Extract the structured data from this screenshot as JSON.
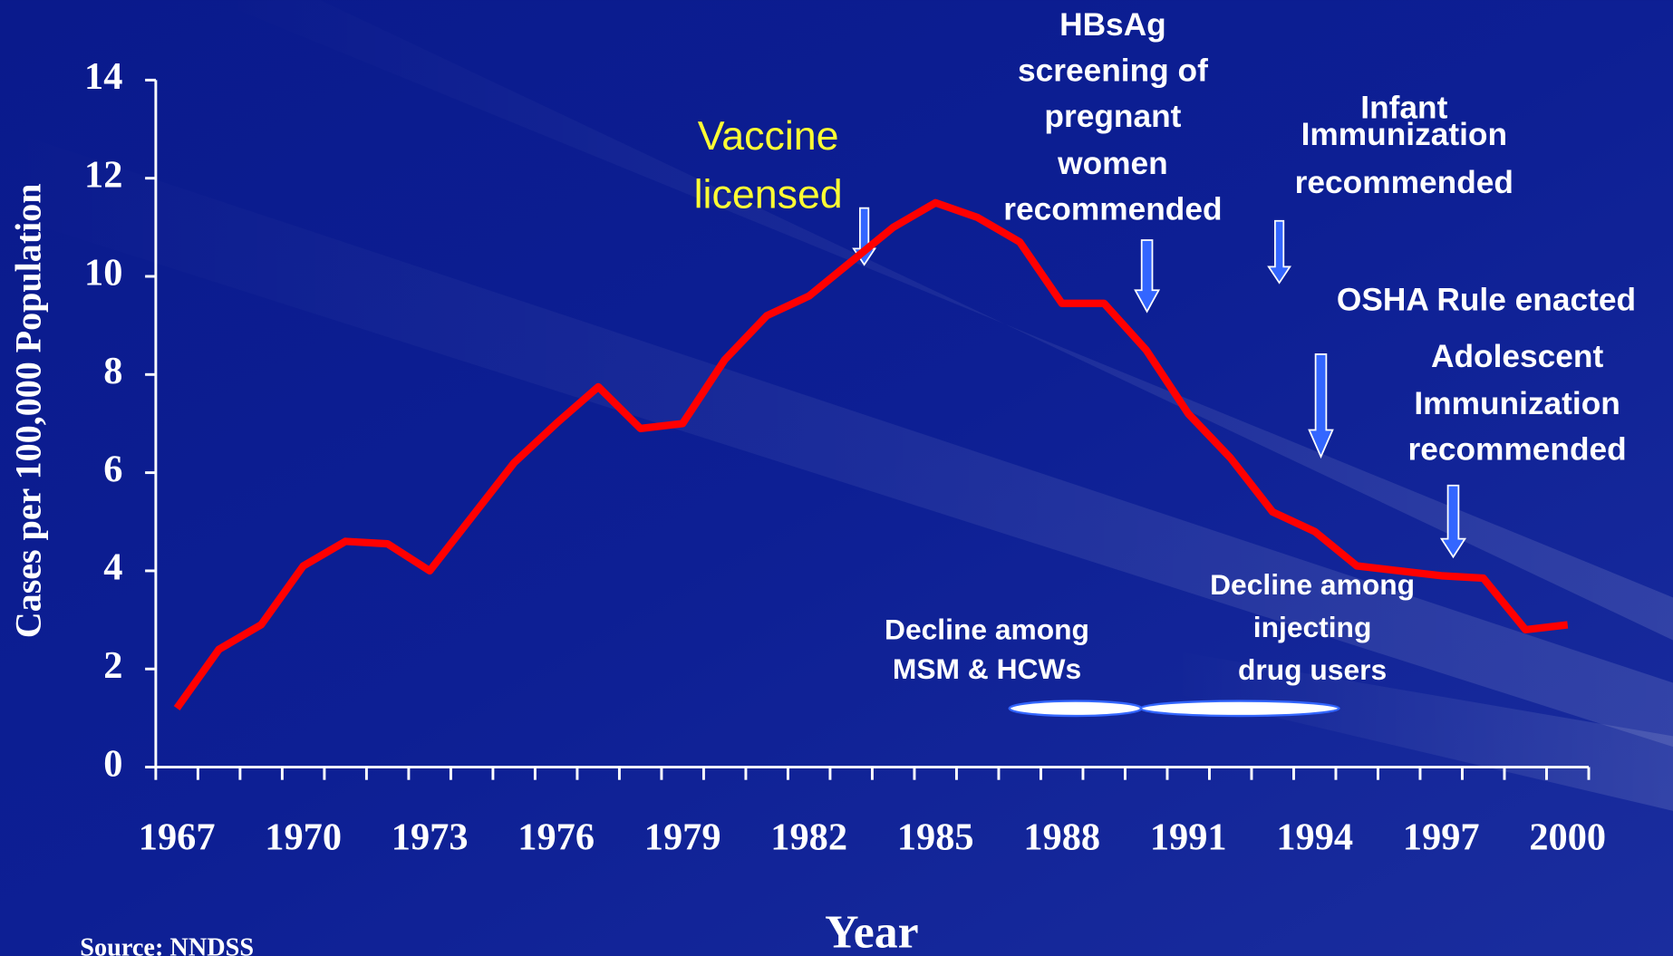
{
  "chart_data": {
    "type": "line",
    "y_label": "Cases per 100,000 Population",
    "x_label": "Year",
    "source": "Source: NNDSS",
    "categories": [
      "1967",
      null,
      null,
      "1970",
      null,
      null,
      "1973",
      null,
      null,
      "1976",
      null,
      null,
      "1979",
      null,
      null,
      "1982",
      null,
      null,
      "1985",
      null,
      null,
      "1988",
      null,
      null,
      "1991",
      null,
      null,
      "1994",
      null,
      null,
      "1997",
      null,
      null,
      "2000"
    ],
    "series": [
      {
        "color": "#ff0000",
        "values": [
          1.2,
          2.4,
          2.9,
          4.1,
          4.6,
          4.55,
          4.0,
          5.1,
          6.2,
          7.0,
          7.75,
          6.9,
          7.0,
          8.3,
          9.2,
          9.6,
          10.3,
          11.0,
          11.5,
          11.2,
          10.7,
          9.45,
          9.45,
          8.5,
          7.2,
          6.3,
          5.2,
          4.8,
          4.1,
          4.0,
          3.9,
          3.85,
          2.8,
          2.9
        ]
      }
    ],
    "ylim": [
      0,
      14
    ],
    "yticks": [
      0,
      2,
      4,
      6,
      8,
      10,
      12,
      14
    ],
    "annotations": [
      {
        "lines": [
          "Vaccine",
          "licensed"
        ],
        "color": "#ffff33"
      },
      {
        "lines": [
          "HBsAg",
          "screening of",
          "pregnant",
          "women",
          "recommended"
        ],
        "color": "#ffffff"
      },
      {
        "lines": [
          "Infant",
          "Immunization",
          "recommended"
        ],
        "color": "#ffffff"
      },
      {
        "lines": [
          "OSHA Rule enacted"
        ],
        "color": "#ffffff"
      },
      {
        "lines": [
          "Adolescent",
          "Immunization",
          "recommended"
        ],
        "color": "#ffffff"
      },
      {
        "lines": [
          "Decline among",
          "MSM &  HCWs"
        ],
        "color": "#ffffff"
      },
      {
        "lines": [
          "Decline among",
          "injecting",
          "drug users"
        ],
        "color": "#ffffff"
      }
    ]
  }
}
